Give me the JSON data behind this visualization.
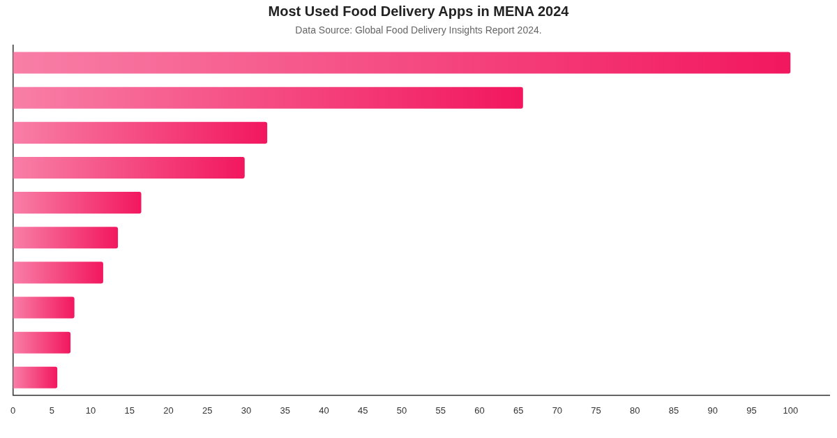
{
  "chart_data": {
    "type": "bar",
    "orientation": "horizontal",
    "title": "Most Used Food Delivery Apps in MENA 2024",
    "subtitle": "Data Source: Global Food Delivery Insights Report 2024.",
    "categories": [
      null,
      null,
      null,
      null,
      null,
      null,
      null,
      null,
      null,
      null
    ],
    "values": [
      100,
      65.6,
      32.7,
      29.8,
      16.5,
      13.5,
      11.6,
      7.9,
      7.4,
      5.7
    ],
    "color": "#f2175f",
    "xlim": [
      0,
      105
    ],
    "xticks": [
      0,
      5,
      10,
      15,
      20,
      25,
      30,
      35,
      40,
      45,
      50,
      55,
      60,
      65,
      70,
      75,
      80,
      85,
      90,
      95,
      100
    ]
  }
}
